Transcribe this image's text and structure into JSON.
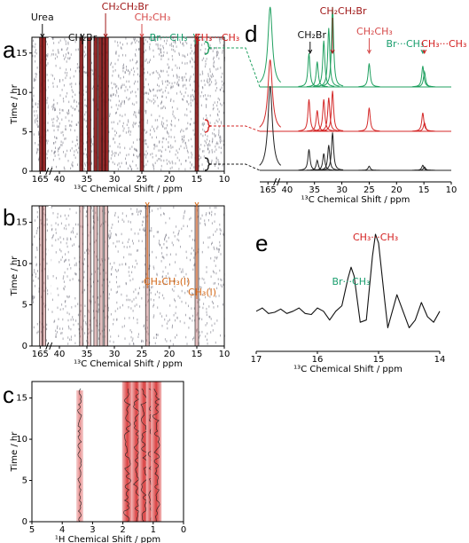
{
  "chart_data": [
    {
      "type": "peakmap",
      "label": "a",
      "xlabel": "¹³C Chemical Shift / ppm",
      "ylabel": "Time / hr",
      "xlim": [
        166.5,
        10
      ],
      "xbreak": [
        41.5,
        163
      ],
      "xticks": [
        165,
        40,
        35,
        30,
        25,
        20,
        15,
        10
      ],
      "ylim": [
        0,
        17
      ],
      "yticks": [
        0,
        5,
        10,
        15
      ],
      "color": "#8a1414",
      "peaks": [
        164.8,
        164.3,
        36.0,
        34.6,
        33.4,
        32.6,
        31.9,
        31.4,
        25.0,
        15.0
      ],
      "annotations": [
        {
          "text": "Urea",
          "x": 164.6,
          "color": "#111111"
        },
        {
          "text": "CH₂Br",
          "x": 35.8,
          "color": "#111111"
        },
        {
          "text": "CH₂CH₂Br",
          "x": 31.6,
          "color": "#a01818"
        },
        {
          "text": "CH₂CH₃",
          "x": 25.0,
          "color": "#d64a4a"
        },
        {
          "text": "Br···CH₃",
          "x": 15.3,
          "color": "#1a9e6e"
        },
        {
          "text": "CH₃···CH₃",
          "x": 14.9,
          "color": "#d42020"
        }
      ]
    },
    {
      "type": "peakmap",
      "label": "b",
      "xlabel": "¹³C Chemical Shift / ppm",
      "ylabel": "Time / hr",
      "xlim": [
        166.5,
        10
      ],
      "xbreak": [
        41.5,
        163
      ],
      "xticks": [
        165,
        40,
        35,
        30,
        25,
        20,
        15,
        10
      ],
      "ylim": [
        0,
        17
      ],
      "yticks": [
        0,
        5,
        10,
        15
      ],
      "color": "#c07070",
      "peaks": [
        164.8,
        164.3,
        36.0,
        34.6,
        33.4,
        32.4,
        31.5,
        24.0,
        15.0
      ],
      "annotations": [
        {
          "text": "CH₂CH₃(l)",
          "x": 24.0,
          "color": "#d46a1a"
        },
        {
          "text": "CH₃(l)",
          "x": 15.0,
          "color": "#d46a1a"
        }
      ]
    },
    {
      "type": "peakmap1h",
      "label": "c",
      "xlabel": "¹H Chemical Shift / ppm",
      "ylabel": "Time / hr",
      "xlim": [
        5,
        0
      ],
      "xticks": [
        5,
        4,
        3,
        2,
        1,
        0
      ],
      "ylim": [
        0,
        17
      ],
      "yticks": [
        0,
        5,
        10,
        15
      ],
      "peaks": [
        3.42,
        1.85,
        1.55,
        1.3,
        1.05,
        0.9
      ]
    },
    {
      "type": "stacked_spectra",
      "label": "d",
      "xlabel": "¹³C Chemical Shift / ppm",
      "xlim": [
        166.5,
        10
      ],
      "xbreak": [
        41.5,
        163
      ],
      "xticks": [
        165,
        40,
        35,
        30,
        25,
        20,
        15,
        10
      ],
      "peaks": [
        164.6,
        36.0,
        34.5,
        33.3,
        32.4,
        31.7,
        25.0,
        15.2,
        14.9
      ],
      "series": [
        {
          "color": "#20a060",
          "values": [
            95,
            40,
            30,
            55,
            70,
            95,
            28,
            25,
            18
          ]
        },
        {
          "color": "#d42828",
          "values": [
            85,
            38,
            25,
            38,
            40,
            48,
            28,
            22,
            10
          ]
        },
        {
          "color": "#222222",
          "values": [
            100,
            25,
            12,
            20,
            30,
            45,
            5,
            6,
            4
          ]
        }
      ],
      "annotations": [
        {
          "text": "CH₂Br",
          "x": 35.8,
          "color": "#111111"
        },
        {
          "text": "CH₂CH₂Br",
          "x": 31.7,
          "color": "#a01818"
        },
        {
          "text": "CH₂CH₃",
          "x": 25.0,
          "color": "#d64a4a"
        },
        {
          "text": "Br···CH₃",
          "x": 15.2,
          "color": "#1a9e6e"
        },
        {
          "text": "CH₃···CH₃",
          "x": 14.9,
          "color": "#d42020"
        }
      ]
    },
    {
      "type": "line",
      "label": "e",
      "xlabel": "¹³C Chemical Shift / ppm",
      "xlim": [
        17,
        14
      ],
      "xticks": [
        17,
        16,
        15,
        14
      ],
      "color": "#111111",
      "x": [
        17.0,
        16.9,
        16.8,
        16.7,
        16.6,
        16.5,
        16.4,
        16.3,
        16.2,
        16.1,
        16.0,
        15.9,
        15.8,
        15.7,
        15.6,
        15.5,
        15.45,
        15.4,
        15.3,
        15.2,
        15.1,
        15.05,
        15.0,
        14.9,
        14.85,
        14.8,
        14.7,
        14.6,
        14.5,
        14.4,
        14.3,
        14.2,
        14.1,
        14.0
      ],
      "values": [
        30,
        33,
        28,
        29,
        32,
        28,
        30,
        33,
        28,
        27,
        33,
        30,
        22,
        30,
        35,
        60,
        70,
        62,
        20,
        22,
        80,
        100,
        92,
        40,
        15,
        25,
        45,
        30,
        15,
        22,
        38,
        25,
        20,
        30
      ],
      "annotations": [
        {
          "text": "Br···CH₃",
          "x": 15.45,
          "color": "#1a9e6e"
        },
        {
          "text": "CH₃···CH₃",
          "x": 15.05,
          "color": "#d42020"
        }
      ]
    }
  ]
}
